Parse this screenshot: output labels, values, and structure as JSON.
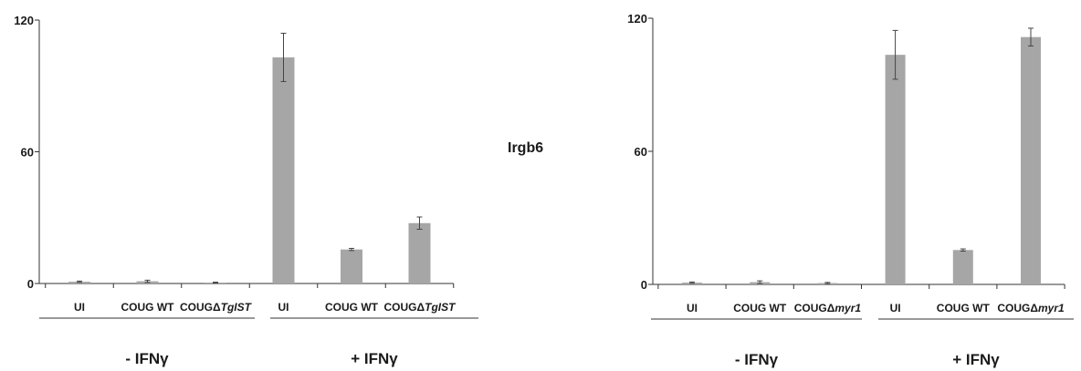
{
  "center_label": "Irgb6",
  "bar_color": "#a6a6a6",
  "chart_data": [
    {
      "type": "bar",
      "categories": [
        "UI",
        "COUG WT",
        "COUGΔTgIST",
        "UI",
        "COUG WT",
        "COUGΔTgIST"
      ],
      "category_parts": [
        {
          "prefix": "UI",
          "italic": ""
        },
        {
          "prefix": "COUG WT",
          "italic": ""
        },
        {
          "prefix": "COUGΔ",
          "italic": "TgIST"
        },
        {
          "prefix": "UI",
          "italic": ""
        },
        {
          "prefix": "COUG WT",
          "italic": ""
        },
        {
          "prefix": "COUGΔ",
          "italic": "TgIST"
        }
      ],
      "values": [
        0.8,
        1.0,
        0.4,
        103,
        15.5,
        27.5
      ],
      "errors": [
        0.3,
        0.5,
        0.2,
        11,
        0.5,
        2.8
      ],
      "ylim": [
        0,
        120
      ],
      "yticks": [
        "0",
        "60",
        "120"
      ],
      "groups": [
        {
          "label": "- IFNγ",
          "span": [
            0,
            2
          ]
        },
        {
          "label": "+ IFNγ",
          "span": [
            3,
            5
          ]
        }
      ]
    },
    {
      "type": "bar",
      "categories": [
        "UI",
        "COUG WT",
        "COUGΔmyr1",
        "UI",
        "COUG WT",
        "COUGΔmyr1"
      ],
      "category_parts": [
        {
          "prefix": "UI",
          "italic": ""
        },
        {
          "prefix": "COUG WT",
          "italic": ""
        },
        {
          "prefix": "COUGΔ",
          "italic": "myr1"
        },
        {
          "prefix": "UI",
          "italic": ""
        },
        {
          "prefix": "COUG WT",
          "italic": ""
        },
        {
          "prefix": "COUGΔ",
          "italic": "myr1"
        }
      ],
      "values": [
        0.8,
        1.0,
        0.6,
        103.5,
        15.5,
        111.5
      ],
      "errors": [
        0.3,
        0.6,
        0.3,
        11,
        0.5,
        4
      ],
      "ylim": [
        0,
        120
      ],
      "yticks": [
        "0",
        "60",
        "120"
      ],
      "groups": [
        {
          "label": "- IFNγ",
          "span": [
            0,
            2
          ]
        },
        {
          "label": "+ IFNγ",
          "span": [
            3,
            5
          ]
        }
      ]
    }
  ]
}
